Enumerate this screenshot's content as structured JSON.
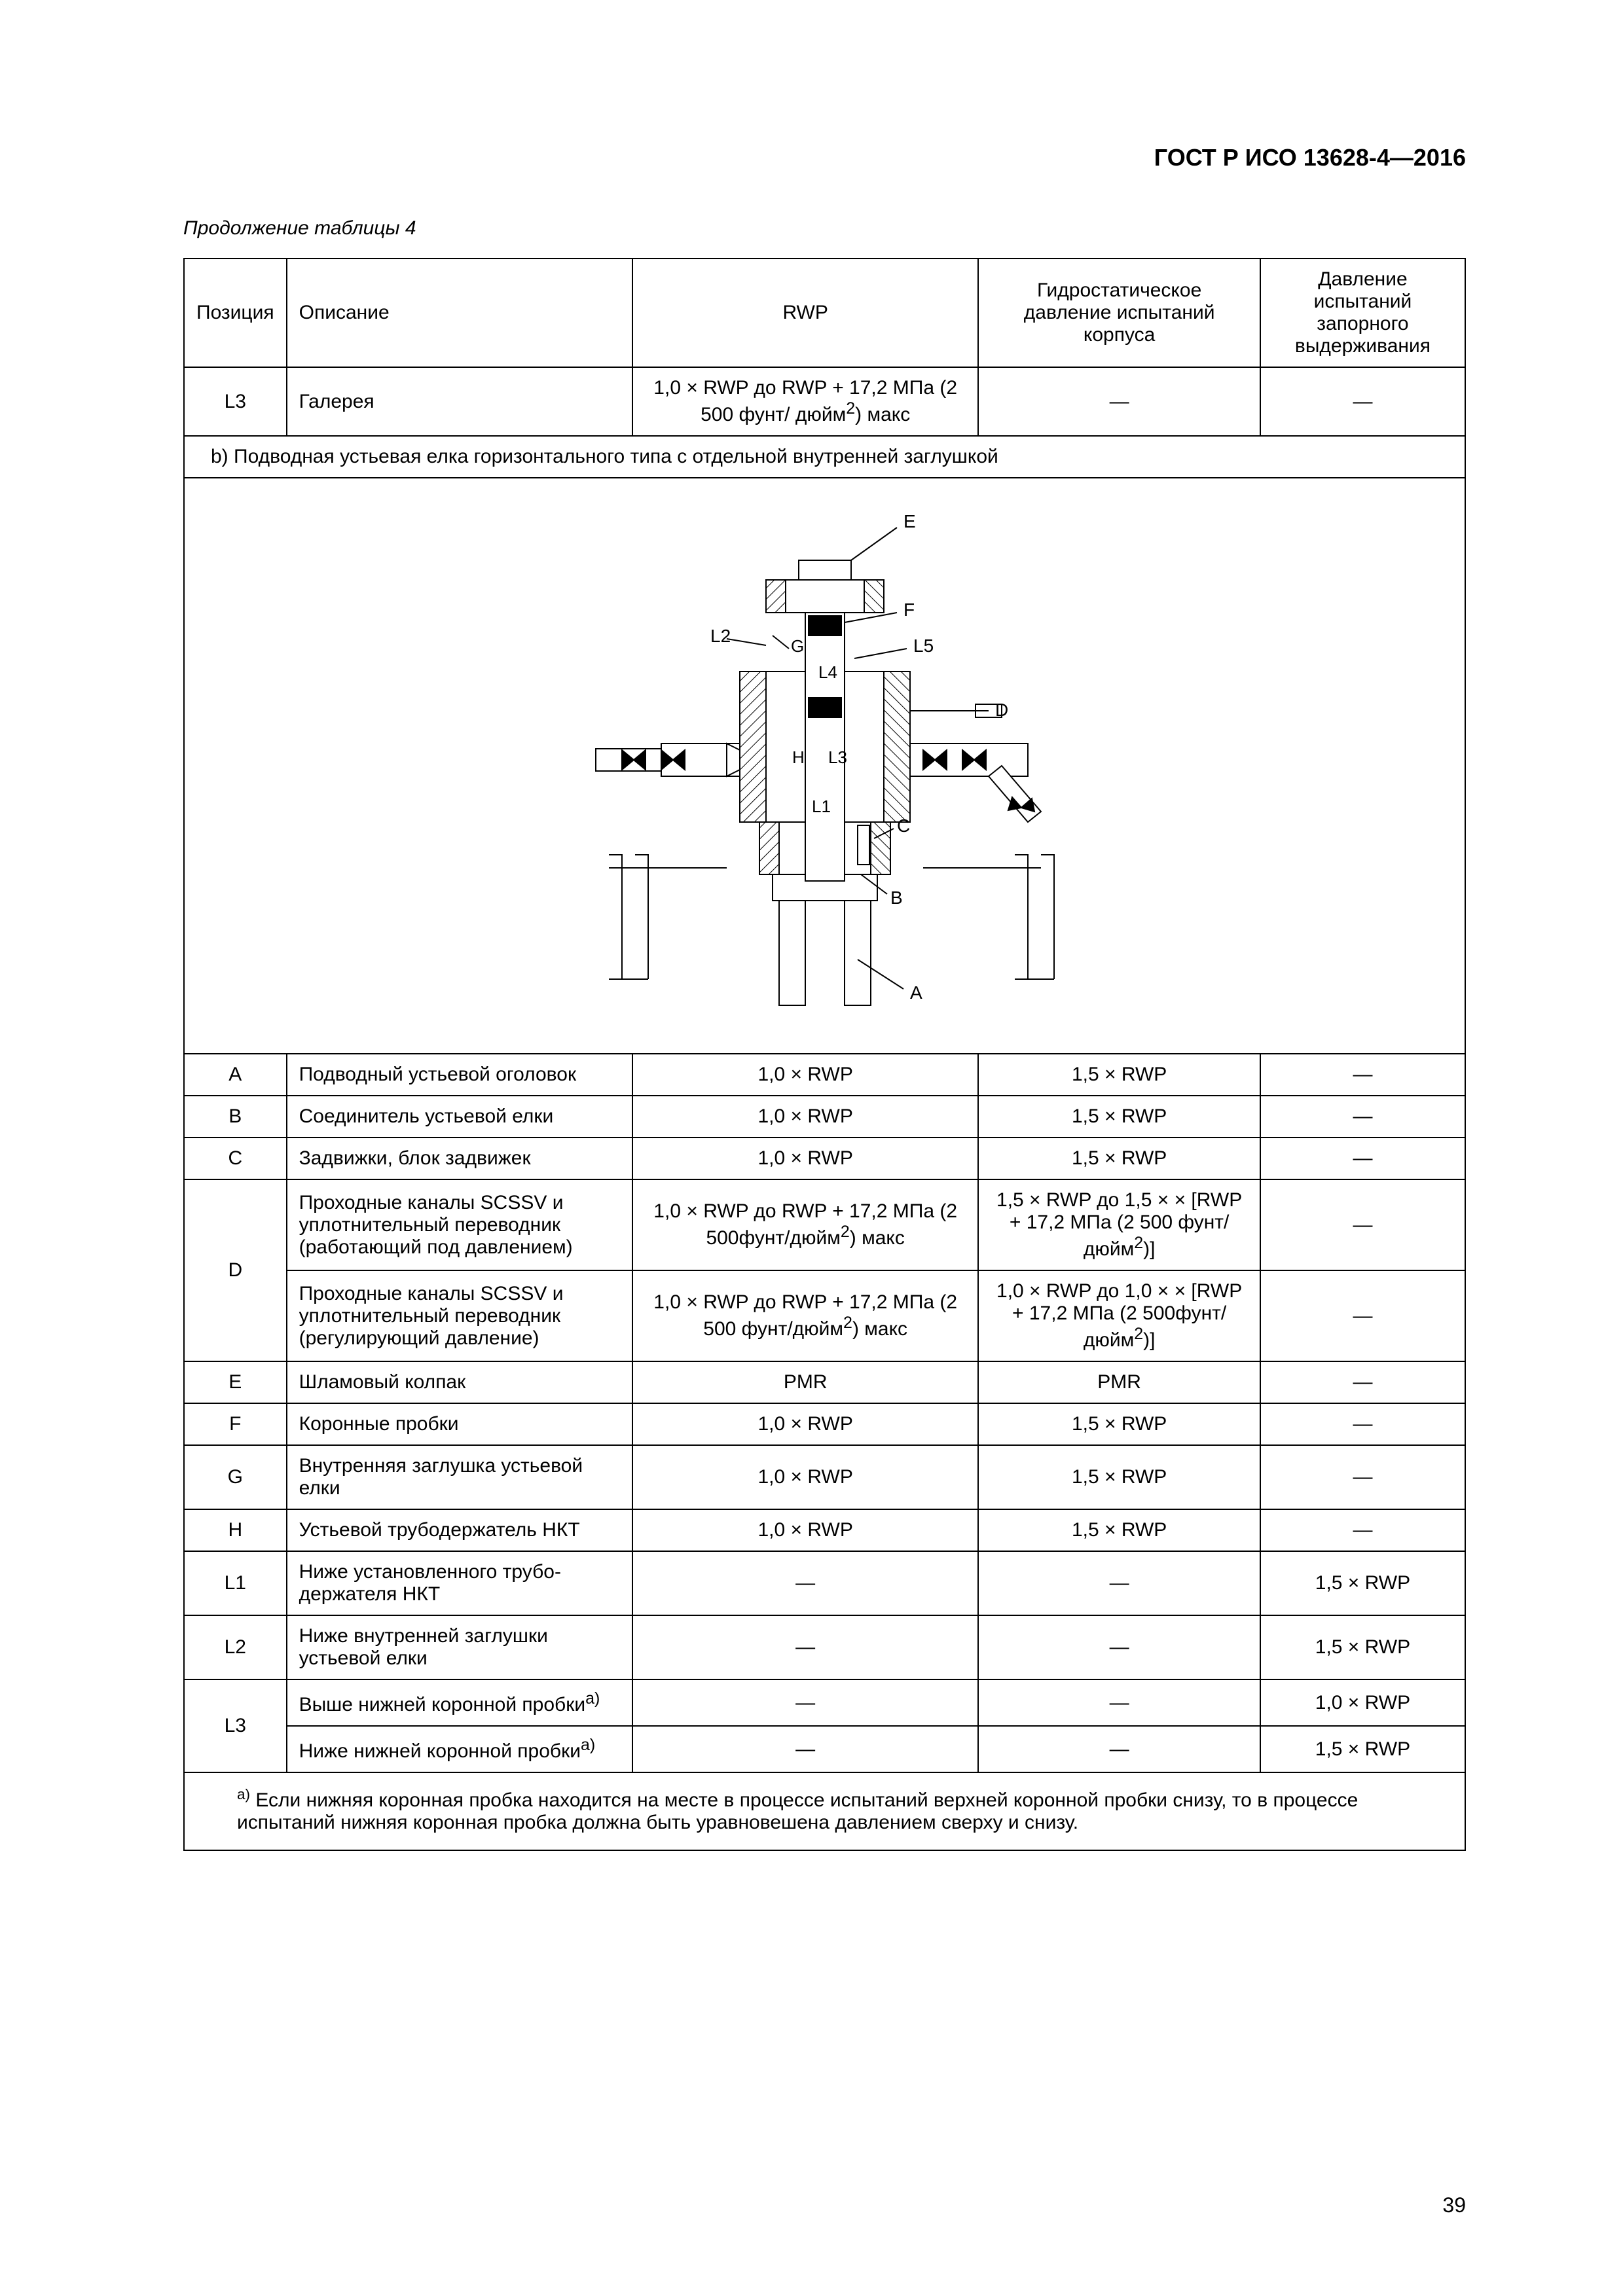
{
  "doc_header": "ГОСТ Р ИСО 13628-4—2016",
  "table_caption": "Продолжение таблицы 4",
  "page_number": "39",
  "columns": {
    "pos": "Позиция",
    "desc": "Описание",
    "rwp": "RWP",
    "hydro": "Гидростатическое давление испытаний корпуса",
    "hold": "Давление испытаний запорного выдерживания"
  },
  "dash": "—",
  "section_b": "b) Подводная устьевая елка горизонтального типа с отдельной внутренней заглушкой",
  "diagram_labels": {
    "A": "A",
    "B": "B",
    "C": "C",
    "D": "D",
    "E": "E",
    "F": "F",
    "G": "G",
    "H": "H",
    "L1": "L1",
    "L2": "L2",
    "L3": "L3",
    "L4": "L4",
    "L5": "L5"
  },
  "diagram_style": {
    "stroke": "#000000",
    "stroke_width": 2,
    "hatch_stroke": "#000000",
    "fill_black": "#000000",
    "font_size": 28,
    "font_family": "Arial, sans-serif"
  },
  "rows_top": [
    {
      "pos": "L3",
      "desc": "Галерея",
      "rwp_html": "1,0 × RWP до RWP + 17,2 МПа (2 500 фунт/ дюйм<sup>2</sup>) макс",
      "hydro": "—",
      "hold": "—"
    }
  ],
  "rows_after": [
    {
      "pos": "A",
      "desc": "Подводный устьевой оголовок",
      "rwp": "1,0 × RWP",
      "hydro": "1,5 × RWP",
      "hold": "—"
    },
    {
      "pos": "B",
      "desc": "Соединитель устьевой елки",
      "rwp": "1,0 × RWP",
      "hydro": "1,5 × RWP",
      "hold": "—"
    },
    {
      "pos": "C",
      "desc": "Задвижки, блок задвижек",
      "rwp": "1,0 × RWP",
      "hydro": "1,5 × RWP",
      "hold": "—"
    }
  ],
  "rows_D": [
    {
      "desc": "Проходные каналы SCSSV и уплотнительный переводник (работающий под давлением)",
      "rwp_html": "1,0 × RWP до RWP + 17,2 МПа (2 500фунт/дюйм<sup>2</sup>) макс",
      "hydro_html": "1,5 × RWP до 1,5 × × [RWP + 17,2 МПа (2 500 фунт/дюйм<sup>2</sup>)]",
      "hold": "—"
    },
    {
      "desc": "Проходные каналы SCSSV и уплотнительный переводник (регулирующий давление)",
      "rwp_html": "1,0 × RWP до RWP + 17,2 МПа (2 500 фунт/дюйм<sup>2</sup>) макс",
      "hydro_html": "1,0 × RWP до 1,0 × × [RWP + 17,2 МПа (2 500фунт/дюйм<sup>2</sup>)]",
      "hold": "—"
    }
  ],
  "pos_D": "D",
  "rows_EFGH": [
    {
      "pos": "E",
      "desc": "Шламовый колпак",
      "rwp": "PMR",
      "hydro": "PMR",
      "hold": "—"
    },
    {
      "pos": "F",
      "desc": "Коронные пробки",
      "rwp": "1,0 × RWP",
      "hydro": "1,5 × RWP",
      "hold": "—"
    },
    {
      "pos": "G",
      "desc": "Внутренняя заглушка устье­вой елки",
      "rwp": "1,0 × RWP",
      "hydro": "1,5 × RWP",
      "hold": "—"
    },
    {
      "pos": "H",
      "desc": "Устьевой трубодержатель НКТ",
      "rwp": "1,0 × RWP",
      "hydro": "1,5 × RWP",
      "hold": "—"
    }
  ],
  "rows_L": [
    {
      "pos": "L1",
      "desc": "Ниже установленного трубо­держателя НКТ",
      "rwp": "—",
      "hydro": "—",
      "hold": "1,5 × RWP"
    },
    {
      "pos": "L2",
      "desc": "Ниже внутренней заглушки устьевой елки",
      "rwp": "—",
      "hydro": "—",
      "hold": "1,5 × RWP"
    }
  ],
  "rows_L3": [
    {
      "desc_html": "Выше нижней коронной пробки<sup>a)</sup>",
      "rwp": "—",
      "hydro": "—",
      "hold": "1,0 × RWP"
    },
    {
      "desc_html": "Ниже нижней коронной пробки<sup>a)</sup>",
      "rwp": "—",
      "hydro": "—",
      "hold": "1,5 × RWP"
    }
  ],
  "pos_L3": "L3",
  "footnote_html": "<sup>a)</sup> Если нижняя коронная пробка находится на месте в процессе испытаний верхней коронной пробки сни­зу, то в процессе испытаний нижняя коронная пробка должна быть уравновешена давлением сверху и снизу."
}
